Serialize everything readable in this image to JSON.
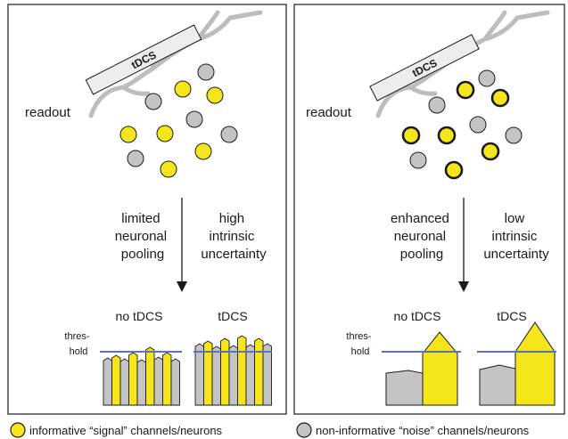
{
  "colors": {
    "signal": "#f5e51b",
    "noise": "#c4c4c4",
    "threshold_line": "#5b73b8",
    "electrode_fill": "#ededed",
    "outline": "#1a1a1a",
    "dendrite": "#bdbdbd"
  },
  "left_panel": {
    "electrode_label": "tDCS",
    "readout_label": "readout",
    "arrow_left_text": [
      "limited",
      "neuronal",
      "pooling"
    ],
    "arrow_right_text": [
      "high",
      "intrinsic",
      "uncertainty"
    ],
    "chart_label_no": "no tDCS",
    "chart_label_yes": "tDCS",
    "threshold_label": [
      "thres-",
      "hold"
    ]
  },
  "right_panel": {
    "electrode_label": "tDCS",
    "readout_label": "readout",
    "arrow_left_text": [
      "enhanced",
      "neuronal",
      "pooling"
    ],
    "arrow_right_text": [
      "low",
      "intrinsic",
      "uncertainty"
    ],
    "chart_label_no": "no tDCS",
    "chart_label_yes": "tDCS",
    "threshold_label": [
      "thres-",
      "hold"
    ]
  },
  "legend": {
    "signal_text": "informative “signal” channels/neurons",
    "noise_text": "non-informative “noise” channels/neurons"
  }
}
